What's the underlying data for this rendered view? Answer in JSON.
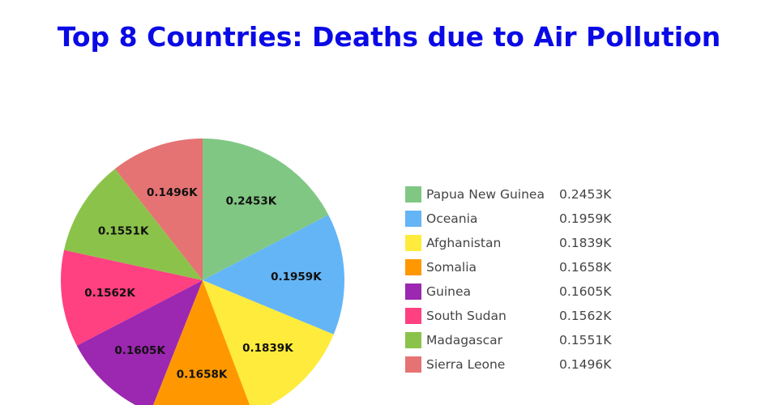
{
  "title": "Top 8 Countries: Deaths due to Air Pollution",
  "chart_data": {
    "type": "pie",
    "title": "Top 8 Countries: Deaths due to Air Pollution",
    "slices": [
      {
        "label": "Papua New Guinea",
        "value": 245.3,
        "display": "0.2453K",
        "color": "#81c784"
      },
      {
        "label": "Oceania",
        "value": 195.9,
        "display": "0.1959K",
        "color": "#64b5f6"
      },
      {
        "label": "Afghanistan",
        "value": 183.9,
        "display": "0.1839K",
        "color": "#ffeb3b"
      },
      {
        "label": "Somalia",
        "value": 165.8,
        "display": "0.1658K",
        "color": "#ff9800"
      },
      {
        "label": "Guinea",
        "value": 160.5,
        "display": "0.1605K",
        "color": "#9c27b0"
      },
      {
        "label": "South Sudan",
        "value": 156.2,
        "display": "0.1562K",
        "color": "#ff4081"
      },
      {
        "label": "Madagascar",
        "value": 155.1,
        "display": "0.1551K",
        "color": "#8bc34a"
      },
      {
        "label": "Sierra Leone",
        "value": 149.6,
        "display": "0.1496K",
        "color": "#e57373"
      }
    ],
    "legend_position": "right",
    "direction": "clockwise",
    "start": "top"
  }
}
